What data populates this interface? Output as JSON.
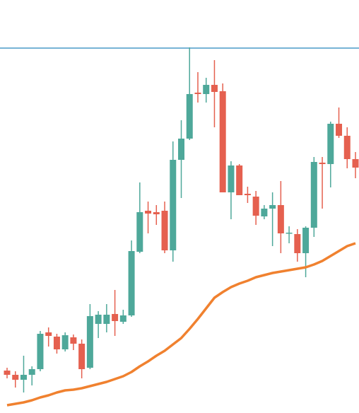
{
  "chart_data": {
    "type": "candlestick",
    "open": [
      60,
      54,
      47,
      54,
      62,
      114,
      108,
      90,
      107,
      98,
      64,
      126,
      126,
      140,
      129,
      138,
      228,
      286,
      284,
      286,
      230,
      358,
      388,
      453,
      451,
      464,
      455,
      312,
      350,
      310,
      306,
      278,
      289,
      294,
      254,
      253,
      226,
      262,
      354,
      352,
      409,
      392,
      359
    ],
    "close": [
      54,
      47,
      54,
      62,
      112,
      109,
      90,
      110,
      98,
      62,
      137,
      139,
      139,
      130,
      138,
      229,
      284,
      282,
      281,
      230,
      358,
      388,
      451,
      451,
      464,
      454,
      312,
      350,
      308,
      308,
      279,
      289,
      294,
      254,
      255,
      226,
      262,
      355,
      352,
      409,
      392,
      359,
      347
    ],
    "high": [
      64,
      59,
      81,
      66,
      116,
      121,
      112,
      114,
      111,
      104,
      154,
      144,
      154,
      174,
      146,
      244,
      326,
      299,
      294,
      299,
      384,
      414,
      517,
      482,
      474,
      499,
      466,
      356,
      352,
      320,
      314,
      294,
      312,
      328,
      264,
      260,
      264,
      362,
      362,
      412,
      432,
      404,
      369
    ],
    "low": [
      49,
      36,
      29,
      39,
      59,
      94,
      84,
      87,
      89,
      49,
      62,
      106,
      114,
      109,
      126,
      136,
      226,
      254,
      266,
      226,
      214,
      304,
      386,
      439,
      439,
      404,
      312,
      274,
      308,
      297,
      266,
      274,
      236,
      226,
      240,
      214,
      192,
      249,
      289,
      319,
      389,
      346,
      332
    ],
    "moving_average": {
      "color": "#f0812f",
      "values": [
        11,
        13,
        15,
        18,
        22,
        25,
        29,
        32,
        33,
        35,
        38,
        41,
        44,
        48,
        52,
        58,
        66,
        73,
        81,
        88,
        97,
        106,
        119,
        133,
        148,
        163,
        171,
        178,
        183,
        187,
        192,
        195,
        198,
        200,
        202,
        204,
        206,
        210,
        215,
        222,
        229,
        236,
        240
      ]
    },
    "level": {
      "value": 516,
      "color": "#4a9cc9"
    },
    "up_color": "#4ea89a",
    "down_color": "#e5604f",
    "ylim": [
      0,
      584
    ]
  }
}
